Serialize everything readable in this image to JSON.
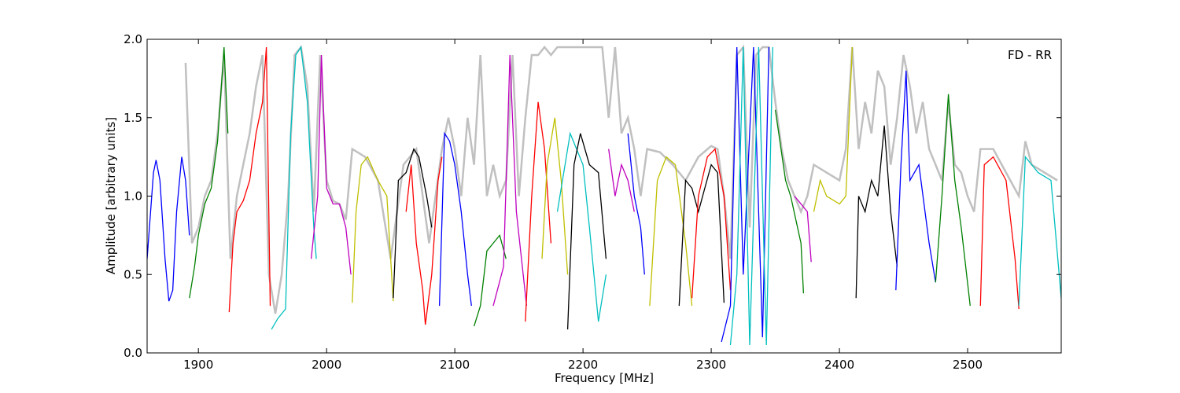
{
  "chart_data": {
    "type": "line",
    "annotation": "FD - RR",
    "x_label": "Frequency [MHz]",
    "y_label": "Amplitude [arbitrary units]",
    "xlim": [
      1860,
      2573
    ],
    "ylim": [
      0,
      2
    ],
    "xticks": [
      1900,
      2000,
      2100,
      2200,
      2300,
      2400,
      2500
    ],
    "yticks": [
      {
        "value": 0,
        "label": "0.0"
      },
      0.5,
      {
        "value": 1,
        "label": "1.0"
      },
      1.5,
      {
        "value": 2,
        "label": "2.0"
      }
    ],
    "series": [
      {
        "color": "#c0c0c0",
        "x": [
          1890,
          1895,
          1900,
          1905,
          1910,
          1915,
          1920,
          1925,
          1930,
          1935,
          1940,
          1945,
          1950,
          1955,
          1960,
          1965,
          1970,
          1975,
          1980,
          1985,
          1990,
          1995,
          2000,
          2005,
          2010,
          2015,
          2020,
          2030,
          2040,
          2050,
          2060,
          2070,
          2080,
          2090,
          2095,
          2100,
          2105,
          2110,
          2115,
          2120,
          2125,
          2130,
          2135,
          2140,
          2145,
          2150,
          2155,
          2160,
          2165,
          2170,
          2175,
          2180,
          2185,
          2190,
          2195,
          2200,
          2205,
          2210,
          2215,
          2220,
          2225,
          2230,
          2235,
          2240,
          2245,
          2250,
          2260,
          2270,
          2280,
          2290,
          2300,
          2305,
          2310,
          2315,
          2320,
          2325,
          2330,
          2335,
          2340,
          2345,
          2350,
          2355,
          2360,
          2365,
          2370,
          2375,
          2380,
          2390,
          2400,
          2405,
          2410,
          2415,
          2420,
          2425,
          2430,
          2435,
          2440,
          2445,
          2450,
          2455,
          2460,
          2465,
          2470,
          2475,
          2480,
          2485,
          2490,
          2495,
          2500,
          2505,
          2510,
          2520,
          2530,
          2540,
          2545,
          2550,
          2560,
          2570
        ],
        "values": [
          1.85,
          0.7,
          0.8,
          1.0,
          1.1,
          1.4,
          1.9,
          0.6,
          1.0,
          1.2,
          1.4,
          1.7,
          1.9,
          0.5,
          0.25,
          0.5,
          1.0,
          1.9,
          1.95,
          1.7,
          0.9,
          1.9,
          1.1,
          0.97,
          0.95,
          0.85,
          1.3,
          1.25,
          1.1,
          0.6,
          1.2,
          1.3,
          0.7,
          1.3,
          1.5,
          1.3,
          1.0,
          1.5,
          1.2,
          1.9,
          1.0,
          1.2,
          1.0,
          1.1,
          1.9,
          1.0,
          1.5,
          1.9,
          1.9,
          1.95,
          1.9,
          1.95,
          1.95,
          1.95,
          1.95,
          1.95,
          1.95,
          1.95,
          1.95,
          1.5,
          1.95,
          1.4,
          1.5,
          1.3,
          1.0,
          1.3,
          1.28,
          1.2,
          1.1,
          1.25,
          1.32,
          1.3,
          1.0,
          0.6,
          1.9,
          1.95,
          0.8,
          1.9,
          1.95,
          1.95,
          1.6,
          1.3,
          1.1,
          1.0,
          0.9,
          1.0,
          1.2,
          1.15,
          1.1,
          1.3,
          1.95,
          1.3,
          1.6,
          1.4,
          1.8,
          1.7,
          1.2,
          1.5,
          1.9,
          1.7,
          1.4,
          1.6,
          1.3,
          1.2,
          1.1,
          1.6,
          1.2,
          1.15,
          1.0,
          0.9,
          1.3,
          1.3,
          1.15,
          1.0,
          1.35,
          1.2,
          1.15,
          1.1
        ]
      },
      {
        "color": "#0000ff",
        "x": [
          1860,
          1865,
          1867,
          1870,
          1874,
          1877,
          1880,
          1883,
          1887,
          1890,
          1893
        ],
        "values": [
          0.6,
          1.15,
          1.23,
          1.1,
          0.6,
          0.33,
          0.4,
          0.9,
          1.25,
          1.1,
          0.75
        ]
      },
      {
        "color": "#008000",
        "x": [
          1893,
          1897,
          1900,
          1905,
          1910,
          1915,
          1920,
          1923
        ],
        "values": [
          0.35,
          0.55,
          0.75,
          0.95,
          1.05,
          1.35,
          1.95,
          1.4
        ]
      },
      {
        "color": "#ff0000",
        "x": [
          1924,
          1927,
          1930,
          1935,
          1940,
          1945,
          1950,
          1953,
          1956
        ],
        "values": [
          0.26,
          0.7,
          0.9,
          0.97,
          1.1,
          1.4,
          1.6,
          1.95,
          0.3
        ]
      },
      {
        "color": "#00bfbf",
        "x": [
          1957,
          1962,
          1968,
          1972,
          1976,
          1980,
          1985,
          1990,
          1992
        ],
        "values": [
          0.15,
          0.22,
          0.28,
          1.4,
          1.9,
          1.95,
          1.6,
          0.8,
          0.6
        ]
      },
      {
        "color": "#bf00bf",
        "x": [
          1988,
          1993,
          1996,
          2000,
          2005,
          2010,
          2015,
          2019
        ],
        "values": [
          0.6,
          1.0,
          1.9,
          1.05,
          0.95,
          0.95,
          0.8,
          0.5
        ]
      },
      {
        "color": "#bfbf00",
        "x": [
          2020,
          2023,
          2027,
          2032,
          2040,
          2047,
          2050,
          2052
        ],
        "values": [
          0.32,
          0.9,
          1.2,
          1.25,
          1.1,
          1.0,
          0.6,
          0.33
        ]
      },
      {
        "color": "#000000",
        "x": [
          2052,
          2056,
          2062,
          2068,
          2072,
          2078,
          2082
        ],
        "values": [
          0.35,
          1.1,
          1.15,
          1.3,
          1.25,
          1.0,
          0.8
        ]
      },
      {
        "color": "#ff0000",
        "x": [
          2062,
          2066,
          2070,
          2075,
          2077,
          2082,
          2087,
          2090
        ],
        "values": [
          0.9,
          1.2,
          0.7,
          0.4,
          0.18,
          0.5,
          1.1,
          1.25
        ]
      },
      {
        "color": "#0000ff",
        "x": [
          2088,
          2092,
          2096,
          2100,
          2105,
          2110,
          2113
        ],
        "values": [
          0.3,
          1.4,
          1.35,
          1.2,
          0.9,
          0.5,
          0.3
        ]
      },
      {
        "color": "#008000",
        "x": [
          2115,
          2120,
          2125,
          2130,
          2135,
          2140
        ],
        "values": [
          0.17,
          0.3,
          0.65,
          0.7,
          0.75,
          0.6
        ]
      },
      {
        "color": "#bf00bf",
        "x": [
          2130,
          2138,
          2143,
          2148,
          2152,
          2156
        ],
        "values": [
          0.3,
          0.55,
          1.9,
          0.9,
          0.6,
          0.3
        ]
      },
      {
        "color": "#ff0000",
        "x": [
          2155,
          2160,
          2165,
          2170,
          2175
        ],
        "values": [
          0.2,
          1.0,
          1.6,
          1.3,
          0.7
        ]
      },
      {
        "color": "#bfbf00",
        "x": [
          2168,
          2172,
          2178,
          2183,
          2188
        ],
        "values": [
          0.6,
          1.2,
          1.5,
          1.1,
          0.5
        ]
      },
      {
        "color": "#00bfbf",
        "x": [
          2180,
          2190,
          2200,
          2205,
          2212,
          2218
        ],
        "values": [
          0.9,
          1.4,
          1.2,
          0.8,
          0.2,
          0.5
        ]
      },
      {
        "color": "#000000",
        "x": [
          2188,
          2193,
          2198,
          2205,
          2212,
          2218
        ],
        "values": [
          0.15,
          1.2,
          1.4,
          1.2,
          1.15,
          0.6
        ]
      },
      {
        "color": "#bf00bf",
        "x": [
          2220,
          2225,
          2230,
          2235,
          2240
        ],
        "values": [
          1.3,
          1.0,
          1.2,
          1.1,
          0.9
        ]
      },
      {
        "color": "#0000ff",
        "x": [
          2235,
          2240,
          2245,
          2248
        ],
        "values": [
          1.4,
          1.0,
          0.8,
          0.5
        ]
      },
      {
        "color": "#bfbf00",
        "x": [
          2252,
          2258,
          2265,
          2272,
          2280,
          2285
        ],
        "values": [
          0.3,
          1.1,
          1.25,
          1.2,
          0.7,
          0.3
        ]
      },
      {
        "color": "#000000",
        "x": [
          2275,
          2280,
          2285,
          2290,
          2295,
          2300,
          2305,
          2310
        ],
        "values": [
          0.3,
          1.1,
          1.05,
          0.9,
          1.05,
          1.2,
          1.15,
          0.32
        ]
      },
      {
        "color": "#ff0000",
        "x": [
          2285,
          2290,
          2297,
          2303,
          2310,
          2315
        ],
        "values": [
          0.35,
          1.0,
          1.25,
          1.3,
          1.0,
          0.4
        ]
      },
      {
        "color": "#0000ff",
        "x": [
          2308,
          2315,
          2320,
          2325,
          2333,
          2340,
          2345
        ],
        "values": [
          0.07,
          0.3,
          1.95,
          0.5,
          1.95,
          0.1,
          1.95
        ]
      },
      {
        "color": "#00bfbf",
        "x": [
          2315,
          2320,
          2325,
          2330,
          2337,
          2343,
          2348
        ],
        "values": [
          0.05,
          0.5,
          1.95,
          0.05,
          1.95,
          0.05,
          1.95
        ]
      },
      {
        "color": "#008000",
        "x": [
          2350,
          2358,
          2362,
          2370,
          2372
        ],
        "values": [
          1.55,
          1.1,
          1.0,
          0.7,
          0.38
        ]
      },
      {
        "color": "#bf00bf",
        "x": [
          2365,
          2375,
          2378
        ],
        "values": [
          1.0,
          0.9,
          0.58
        ]
      },
      {
        "color": "#bfbf00",
        "x": [
          2380,
          2385,
          2390,
          2400,
          2405,
          2410
        ],
        "values": [
          0.9,
          1.1,
          1.0,
          0.95,
          1.0,
          1.95
        ]
      },
      {
        "color": "#000000",
        "x": [
          2413,
          2415,
          2420,
          2425,
          2430,
          2435,
          2440,
          2445
        ],
        "values": [
          0.35,
          1.0,
          0.9,
          1.1,
          1.0,
          1.45,
          0.9,
          0.55
        ]
      },
      {
        "color": "#0000ff",
        "x": [
          2444,
          2448,
          2452,
          2455,
          2462,
          2470,
          2475
        ],
        "values": [
          0.4,
          1.2,
          1.8,
          1.1,
          1.2,
          0.7,
          0.45
        ]
      },
      {
        "color": "#008000",
        "x": [
          2475,
          2480,
          2485,
          2490,
          2495,
          2502
        ],
        "values": [
          0.45,
          1.0,
          1.65,
          1.1,
          0.8,
          0.3
        ]
      },
      {
        "color": "#ff0000",
        "x": [
          2510,
          2513,
          2520,
          2530,
          2537,
          2540
        ],
        "values": [
          0.3,
          1.2,
          1.25,
          1.1,
          0.6,
          0.28
        ]
      },
      {
        "color": "#00bfbf",
        "x": [
          2540,
          2545,
          2555,
          2565,
          2573
        ],
        "values": [
          0.3,
          1.25,
          1.15,
          1.1,
          0.35
        ]
      }
    ]
  }
}
